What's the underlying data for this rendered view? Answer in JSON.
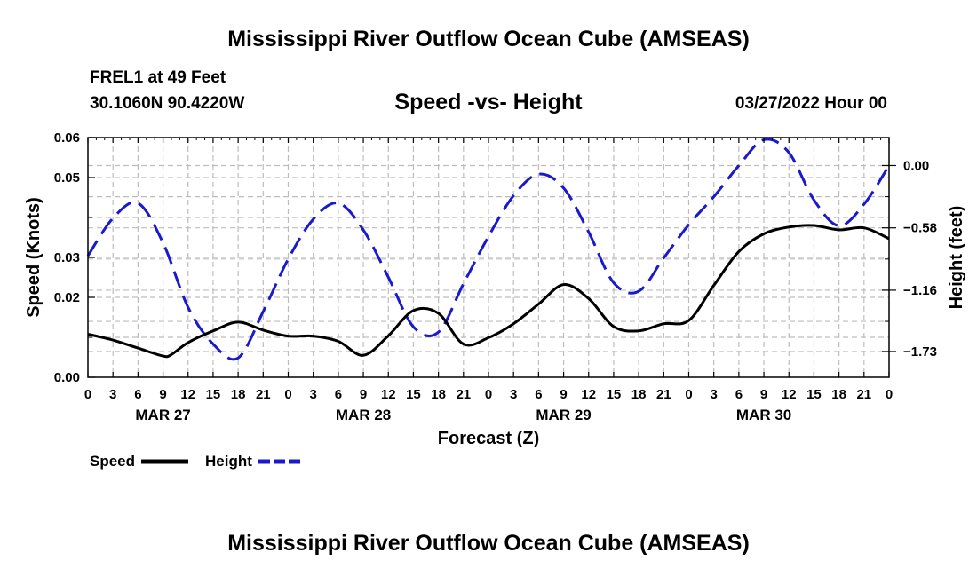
{
  "page": {
    "main_title": "Mississippi River Outflow Ocean Cube (AMSEAS)",
    "station": "FREL1 at 49 Feet",
    "coords": "30.1060N  90.4220W",
    "subtitle": "Speed -vs- Height",
    "datetime": "03/27/2022 Hour 00",
    "bottom_title": "Mississippi River Outflow Ocean Cube (AMSEAS)"
  },
  "chart_data": {
    "type": "line",
    "title": "Speed -vs- Height",
    "xlabel": "Forecast (Z)",
    "ylabel": "Speed (Knots)",
    "y2label": "Height (feet)",
    "xlim": [
      0,
      96
    ],
    "ylim": [
      0,
      0.06
    ],
    "y2lim": [
      -1.97,
      0.26
    ],
    "grid": true,
    "x_tick_values": [
      0,
      3,
      6,
      9,
      12,
      15,
      18,
      21,
      24,
      27,
      30,
      33,
      36,
      39,
      42,
      45,
      48,
      51,
      54,
      57,
      60,
      63,
      66,
      69,
      72,
      75,
      78,
      81,
      84,
      87,
      90,
      93,
      96
    ],
    "x_tick_labels": [
      "0",
      "3",
      "6",
      "9",
      "12",
      "15",
      "18",
      "21",
      "0",
      "3",
      "6",
      "9",
      "12",
      "15",
      "18",
      "21",
      "0",
      "3",
      "6",
      "9",
      "12",
      "15",
      "18",
      "21",
      "0",
      "3",
      "6",
      "9",
      "12",
      "15",
      "18",
      "21",
      "0"
    ],
    "day_labels": [
      {
        "label": "MAR 27",
        "x": 9
      },
      {
        "label": "MAR 28",
        "x": 33
      },
      {
        "label": "MAR 29",
        "x": 57
      },
      {
        "label": "MAR 30",
        "x": 81
      }
    ],
    "y_ticks": [
      {
        "value": 0.0,
        "label": "0.00"
      },
      {
        "value": 0.02,
        "label": "0.02"
      },
      {
        "value": 0.03,
        "label": "0.03"
      },
      {
        "value": 0.05,
        "label": "0.05"
      },
      {
        "value": 0.06,
        "label": "0.06"
      }
    ],
    "y_minor_ticks": [
      0.01,
      0.04
    ],
    "y2_ticks": [
      {
        "value": 0.0,
        "label": "0.00"
      },
      {
        "value": -0.58,
        "label": "−0.58"
      },
      {
        "value": -1.16,
        "label": "−1.16"
      },
      {
        "value": -1.73,
        "label": "−1.73"
      }
    ],
    "y2_minor_ticks": [
      -0.29,
      -0.87,
      -1.45
    ],
    "legend": [
      {
        "name": "Speed",
        "color": "#000000",
        "style": "solid"
      },
      {
        "name": "Height",
        "color": "#1a1acc",
        "style": "dashed"
      }
    ],
    "legend_position": "bottom-left",
    "series": [
      {
        "name": "Speed",
        "axis": "left",
        "color": "#000000",
        "x": [
          0,
          3,
          6,
          9,
          10,
          12,
          15,
          18,
          21,
          24,
          27,
          30,
          33,
          36,
          39,
          42,
          45,
          48,
          51,
          54,
          57,
          60,
          63,
          66,
          69,
          72,
          75,
          78,
          81,
          84,
          87,
          90,
          93,
          96
        ],
        "values": [
          0.0108,
          0.0093,
          0.0073,
          0.0053,
          0.0057,
          0.0087,
          0.0116,
          0.0138,
          0.0118,
          0.0103,
          0.0103,
          0.009,
          0.0055,
          0.0104,
          0.0167,
          0.016,
          0.0083,
          0.0099,
          0.0134,
          0.0183,
          0.0232,
          0.0197,
          0.0127,
          0.0116,
          0.0134,
          0.0142,
          0.023,
          0.0315,
          0.0359,
          0.0376,
          0.038,
          0.0369,
          0.0374,
          0.0347
        ]
      },
      {
        "name": "Height",
        "axis": "right",
        "color": "#1a1acc",
        "x": [
          0,
          3,
          6,
          9,
          12,
          15,
          18,
          21,
          24,
          27,
          30,
          33,
          36,
          39,
          42,
          45,
          48,
          51,
          54,
          57,
          60,
          63,
          66,
          69,
          72,
          75,
          78,
          81,
          84,
          87,
          90,
          93,
          96
        ],
        "values": [
          -0.84,
          -0.49,
          -0.35,
          -0.72,
          -1.32,
          -1.66,
          -1.79,
          -1.36,
          -0.87,
          -0.5,
          -0.35,
          -0.6,
          -1.04,
          -1.5,
          -1.55,
          -1.1,
          -0.66,
          -0.28,
          -0.08,
          -0.21,
          -0.62,
          -1.09,
          -1.17,
          -0.86,
          -0.55,
          -0.29,
          0.0,
          0.24,
          0.12,
          -0.32,
          -0.56,
          -0.36,
          0.0
        ]
      }
    ]
  }
}
